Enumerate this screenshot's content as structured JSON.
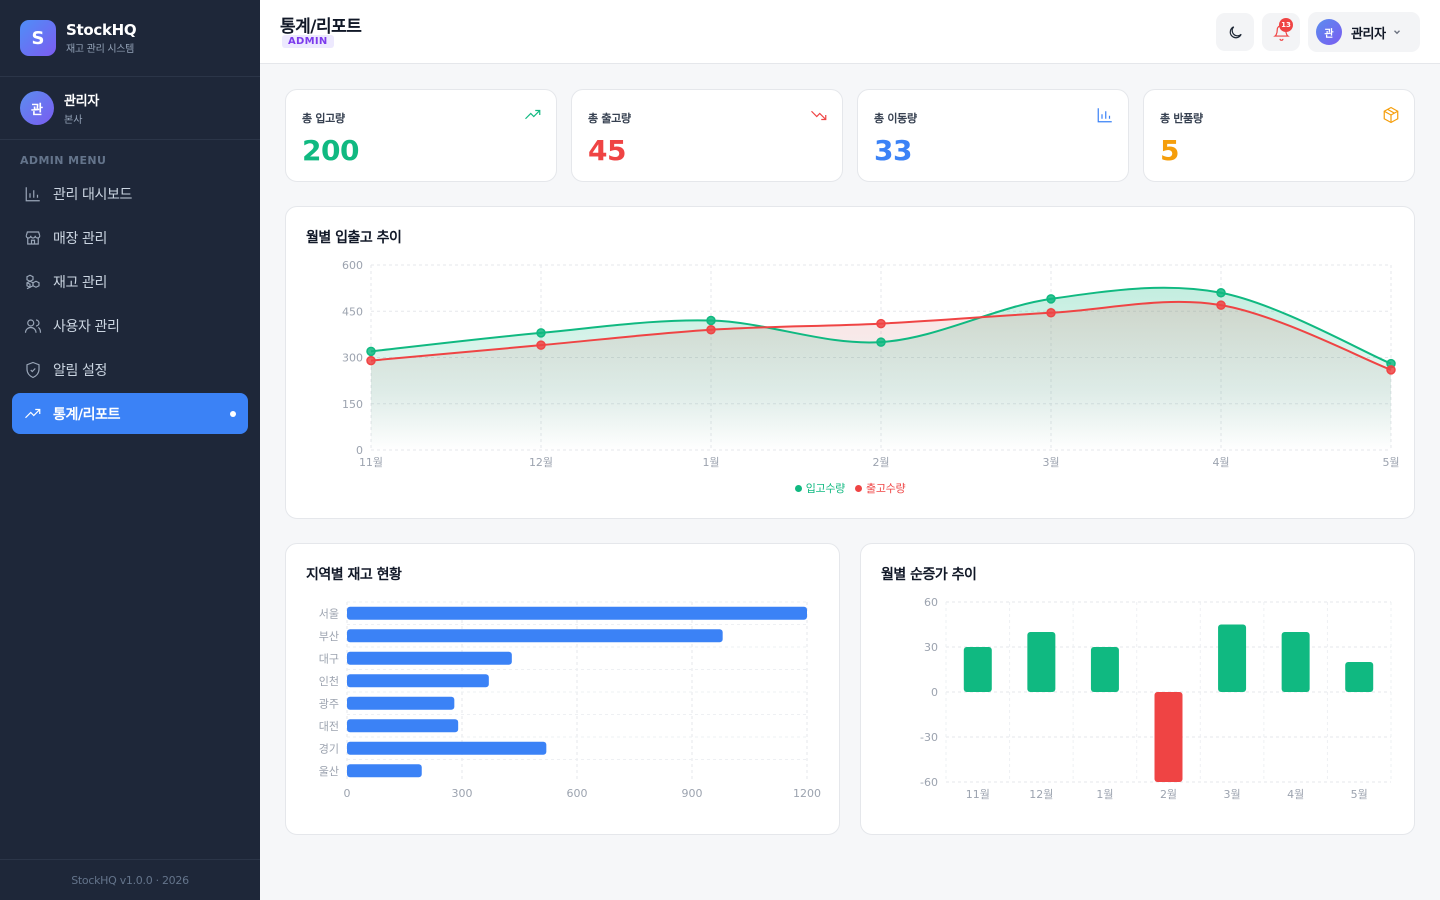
{
  "brand": {
    "initial": "S",
    "name": "StockHQ",
    "subtitle": "재고 관리 시스템"
  },
  "user": {
    "initial": "관",
    "name": "관리자",
    "branch": "본사"
  },
  "menu_title": "ADMIN MENU",
  "menu": [
    {
      "label": "관리 대시보드",
      "icon": "bar-chart-icon",
      "active": false
    },
    {
      "label": "매장 관리",
      "icon": "store-icon",
      "active": false
    },
    {
      "label": "재고 관리",
      "icon": "boxes-icon",
      "active": false
    },
    {
      "label": "사용자 관리",
      "icon": "users-icon",
      "active": false
    },
    {
      "label": "알림 설정",
      "icon": "shield-icon",
      "active": false
    },
    {
      "label": "통계/리포트",
      "icon": "trending-up-icon",
      "active": true
    }
  ],
  "footer": "StockHQ v1.0.0 · 2026",
  "header": {
    "title": "통계/리포트",
    "role_badge": "ADMIN",
    "notification_count": "13",
    "profile_initial": "관",
    "profile_name": "관리자"
  },
  "stats": [
    {
      "label": "총 입고량",
      "value": "200",
      "color": "#10b981",
      "icon": "trending-up-icon"
    },
    {
      "label": "총 출고량",
      "value": "45",
      "color": "#ef4444",
      "icon": "trending-down-icon"
    },
    {
      "label": "총 이동량",
      "value": "33",
      "color": "#3b82f6",
      "icon": "bar-chart-icon"
    },
    {
      "label": "총 반품량",
      "value": "5",
      "color": "#f59e0b",
      "icon": "package-icon"
    }
  ],
  "colors": {
    "inbound": "#10b981",
    "outbound": "#ef4444",
    "bar": "#3b82f6",
    "negative": "#ef4444"
  },
  "chart_data": [
    {
      "type": "line",
      "title": "월별 입출고 추이",
      "categories": [
        "11월",
        "12월",
        "1월",
        "2월",
        "3월",
        "4월",
        "5월"
      ],
      "series": [
        {
          "name": "입고수량",
          "values": [
            320,
            380,
            420,
            350,
            490,
            510,
            280
          ]
        },
        {
          "name": "출고수량",
          "values": [
            290,
            340,
            390,
            410,
            445,
            470,
            260
          ]
        }
      ],
      "yticks": [
        0,
        150,
        300,
        450,
        600
      ],
      "ylim": [
        0,
        600
      ],
      "legend": "bottom-center",
      "grid": true
    },
    {
      "type": "bar",
      "orientation": "horizontal",
      "title": "지역별 재고 현황",
      "categories": [
        "서울",
        "부산",
        "대구",
        "인천",
        "광주",
        "대전",
        "경기",
        "울산"
      ],
      "values": [
        1200,
        980,
        430,
        370,
        280,
        290,
        520,
        195
      ],
      "xticks": [
        0,
        300,
        600,
        900,
        1200
      ],
      "xlim": [
        0,
        1200
      ],
      "grid": true
    },
    {
      "type": "bar",
      "title": "월별 순증가 추이",
      "categories": [
        "11월",
        "12월",
        "1월",
        "2월",
        "3월",
        "4월",
        "5월"
      ],
      "values": [
        30,
        40,
        30,
        -60,
        45,
        40,
        20
      ],
      "yticks": [
        60,
        30,
        0,
        -30,
        -60
      ],
      "ylim": [
        -60,
        60
      ],
      "grid": true
    }
  ]
}
